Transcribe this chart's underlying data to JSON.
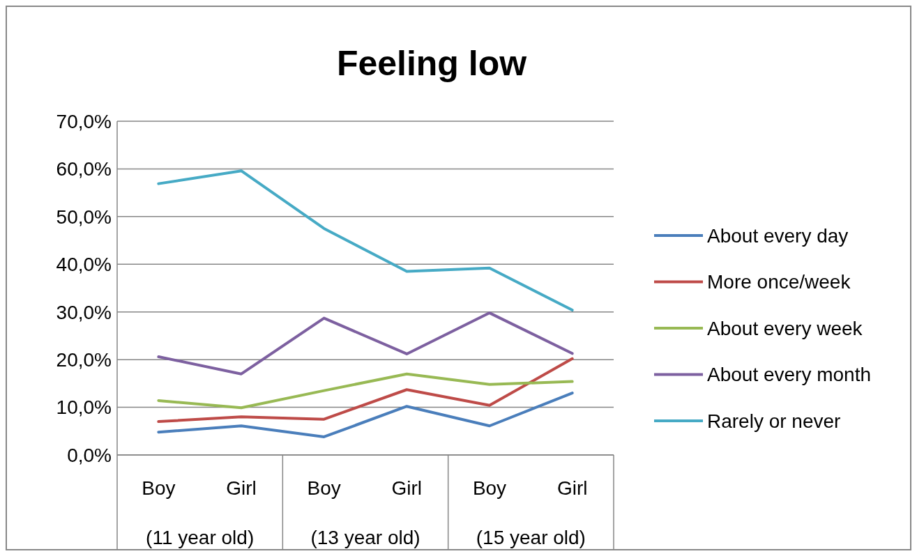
{
  "chart_data": {
    "type": "line",
    "title": "Feeling low",
    "categories": [
      "Boy",
      "Girl",
      "Boy",
      "Girl",
      "Boy",
      "Girl"
    ],
    "annotations": [
      "(11 year old)",
      "(13 year old)",
      "(15 year old)"
    ],
    "series": [
      {
        "name": "About every day",
        "color": "#4a7ebb",
        "values": [
          4.8,
          6.1,
          3.8,
          10.2,
          6.1,
          13.0
        ]
      },
      {
        "name": "More once/week",
        "color": "#be4b48",
        "values": [
          7.0,
          8.0,
          7.5,
          13.7,
          10.4,
          20.2
        ]
      },
      {
        "name": "About every week",
        "color": "#98b954",
        "values": [
          11.4,
          9.9,
          13.5,
          17.0,
          14.8,
          15.4
        ]
      },
      {
        "name": "About every month",
        "color": "#7d60a0",
        "values": [
          20.6,
          17.0,
          28.7,
          21.2,
          29.8,
          21.3
        ]
      },
      {
        "name": "Rarely or never",
        "color": "#46aac5",
        "values": [
          56.9,
          59.6,
          47.5,
          38.5,
          39.2,
          30.4
        ]
      }
    ],
    "ylim": [
      0,
      70
    ],
    "yticks": [
      {
        "value": 0,
        "label": "0,0%"
      },
      {
        "value": 10,
        "label": "10,0%"
      },
      {
        "value": 20,
        "label": "20,0%"
      },
      {
        "value": 30,
        "label": "30,0%"
      },
      {
        "value": 40,
        "label": "40,0%"
      },
      {
        "value": 50,
        "label": "50,0%"
      },
      {
        "value": 60,
        "label": "60,0%"
      },
      {
        "value": 70,
        "label": "70,0%"
      }
    ],
    "grid": "y",
    "legend": "right",
    "marker": "none",
    "line_style": "solid"
  }
}
